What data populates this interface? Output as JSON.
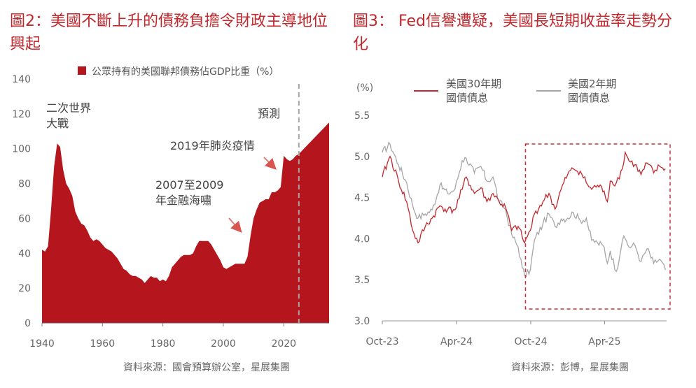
{
  "titles": {
    "left": "圖2：美國不斷上升的債務負擔令財政主導地位興起",
    "right": "圖3： Fed信譽遭疑，美國長短期收益率走勢分化"
  },
  "sources": {
    "left": "資料來源：國會預算辦公室，星展集團",
    "right": "資料來源：彭博，星展集團"
  },
  "colors": {
    "title": "#c0282d",
    "area": "#b5161d",
    "line_red": "#c1272d",
    "line_gray": "#a6a6a6",
    "box": "#c8323a"
  },
  "chart_data": [
    {
      "type": "area",
      "legend": "公眾持有的美國聯邦債務佔GDP比重（%）",
      "legend_position": "top",
      "ylim": [
        0,
        140
      ],
      "yticks": [
        0,
        20,
        40,
        60,
        80,
        100,
        120,
        140
      ],
      "xlim": [
        1940,
        2035
      ],
      "xticks": [
        1940,
        1960,
        1980,
        2000,
        2020
      ],
      "forecast_start": 2025,
      "annotations": {
        "ww2": "二次世界\n大戰",
        "forecast": "預測",
        "covid": "2019年肺炎疫情",
        "gfc": "2007至2009\n年金融海嘯"
      },
      "series": [
        {
          "x": [
            1940,
            1941,
            1942,
            1943,
            1944,
            1945,
            1946,
            1947,
            1948,
            1949,
            1950,
            1951,
            1952,
            1953,
            1954,
            1955,
            1956,
            1957,
            1958,
            1959,
            1960,
            1961,
            1962,
            1963,
            1964,
            1965,
            1966,
            1967,
            1968,
            1969,
            1970,
            1971,
            1972,
            1973,
            1974,
            1975,
            1976,
            1977,
            1978,
            1979,
            1980,
            1981,
            1982,
            1983,
            1984,
            1985,
            1986,
            1987,
            1988,
            1989,
            1990,
            1991,
            1992,
            1993,
            1994,
            1995,
            1996,
            1997,
            1998,
            1999,
            2000,
            2001,
            2002,
            2003,
            2004,
            2005,
            2006,
            2007,
            2008,
            2009,
            2010,
            2011,
            2012,
            2013,
            2014,
            2015,
            2016,
            2017,
            2018,
            2019,
            2020,
            2021,
            2022,
            2023,
            2024,
            2025,
            2030,
            2035
          ],
          "values": [
            42,
            41,
            44,
            65,
            90,
            103,
            101,
            88,
            80,
            77,
            73,
            64,
            60,
            57,
            56,
            53,
            49,
            47,
            48,
            47,
            45,
            43,
            42,
            41,
            39,
            37,
            34,
            31,
            30,
            28,
            27,
            27,
            26,
            25,
            23,
            25,
            27,
            26,
            26,
            24,
            25,
            24,
            27,
            32,
            34,
            36,
            38,
            39,
            39,
            39,
            40,
            44,
            47,
            47,
            47,
            47,
            45,
            42,
            39,
            36,
            32,
            31,
            32,
            33,
            34,
            34,
            34,
            34,
            38,
            50,
            60,
            65,
            69,
            70,
            71,
            71,
            75,
            75,
            76,
            78,
            96,
            94,
            93,
            94,
            96,
            97,
            106,
            115
          ]
        }
      ]
    },
    {
      "type": "line",
      "ylabel": "(%)",
      "ylim": [
        3.0,
        5.5
      ],
      "yticks": [
        3.0,
        3.5,
        4.0,
        4.5,
        5.0,
        5.5
      ],
      "xticks": [
        "Oct-23",
        "Apr-24",
        "Oct-24",
        "Apr-25"
      ],
      "highlight": "Oct-24 onward",
      "series": [
        {
          "name": "美國30年期\n國債債息",
          "color": "#c1272d",
          "x": [
            "2023-10-01",
            "2023-10-20",
            "2023-11-10",
            "2023-11-30",
            "2023-12-15",
            "2023-12-28",
            "2024-01-15",
            "2024-02-01",
            "2024-02-20",
            "2024-03-10",
            "2024-03-28",
            "2024-04-15",
            "2024-04-25",
            "2024-05-15",
            "2024-05-31",
            "2024-06-15",
            "2024-06-30",
            "2024-07-15",
            "2024-07-31",
            "2024-08-15",
            "2024-08-31",
            "2024-09-10",
            "2024-09-16",
            "2024-09-30",
            "2024-10-10",
            "2024-10-31",
            "2024-11-15",
            "2024-11-30",
            "2024-12-15",
            "2024-12-31",
            "2025-01-14",
            "2025-01-31",
            "2025-02-15",
            "2025-02-28",
            "2025-03-15",
            "2025-03-31",
            "2025-04-08",
            "2025-04-15",
            "2025-04-30",
            "2025-05-15",
            "2025-05-22",
            "2025-05-31",
            "2025-06-15",
            "2025-06-30",
            "2025-07-15",
            "2025-07-31",
            "2025-08-15",
            "2025-08-29"
          ],
          "values": [
            4.75,
            5.0,
            4.7,
            4.45,
            4.1,
            3.95,
            4.15,
            4.25,
            4.4,
            4.35,
            4.35,
            4.6,
            4.75,
            4.55,
            4.62,
            4.45,
            4.55,
            4.45,
            4.38,
            4.1,
            4.15,
            4.02,
            3.95,
            4.1,
            4.3,
            4.45,
            4.55,
            4.36,
            4.6,
            4.78,
            4.85,
            4.82,
            4.68,
            4.6,
            4.65,
            4.58,
            4.45,
            4.7,
            4.68,
            4.85,
            5.05,
            4.95,
            4.9,
            4.78,
            4.92,
            4.8,
            4.88,
            4.85
          ]
        },
        {
          "name": "美國2年期\n國債債息",
          "color": "#a6a6a6",
          "x": [
            "2023-10-01",
            "2023-10-20",
            "2023-11-10",
            "2023-11-30",
            "2023-12-15",
            "2023-12-28",
            "2024-01-15",
            "2024-02-01",
            "2024-02-20",
            "2024-03-10",
            "2024-03-28",
            "2024-04-15",
            "2024-04-25",
            "2024-05-15",
            "2024-05-31",
            "2024-06-15",
            "2024-06-30",
            "2024-07-15",
            "2024-07-31",
            "2024-08-15",
            "2024-08-31",
            "2024-09-10",
            "2024-09-16",
            "2024-09-30",
            "2024-10-10",
            "2024-10-31",
            "2024-11-15",
            "2024-11-30",
            "2024-12-15",
            "2024-12-31",
            "2025-01-14",
            "2025-01-31",
            "2025-02-15",
            "2025-02-28",
            "2025-03-15",
            "2025-03-31",
            "2025-04-08",
            "2025-04-15",
            "2025-04-30",
            "2025-05-15",
            "2025-05-22",
            "2025-05-31",
            "2025-06-15",
            "2025-06-30",
            "2025-07-15",
            "2025-07-31",
            "2025-08-15",
            "2025-08-29"
          ],
          "values": [
            5.05,
            5.15,
            4.9,
            4.68,
            4.4,
            4.25,
            4.3,
            4.35,
            4.65,
            4.55,
            4.6,
            4.95,
            4.98,
            4.8,
            4.88,
            4.7,
            4.75,
            4.45,
            4.35,
            4.05,
            3.9,
            3.65,
            3.55,
            3.62,
            3.98,
            4.18,
            4.3,
            4.15,
            4.24,
            4.25,
            4.32,
            4.22,
            4.25,
            3.98,
            3.95,
            3.9,
            3.7,
            3.85,
            3.6,
            3.98,
            4.0,
            3.9,
            3.92,
            3.72,
            3.88,
            3.7,
            3.75,
            3.62
          ]
        }
      ]
    }
  ]
}
